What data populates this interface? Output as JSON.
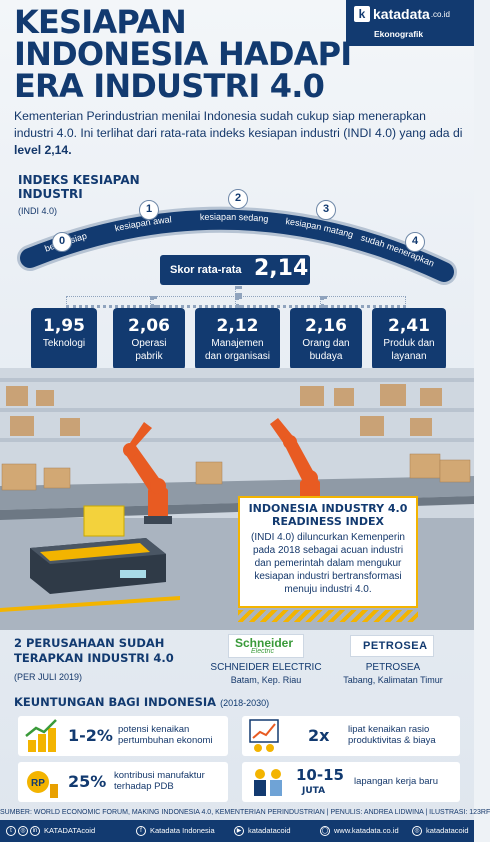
{
  "header": {
    "title_lines": [
      "KESIAPAN",
      "INDONESIA HADAPI",
      "ERA INDUSTRI 4.0"
    ],
    "brand": "katadata",
    "brand_tld": ".co.id",
    "brand_sub": "Ekonografik"
  },
  "intro": {
    "text": "Kementerian Perindustrian menilai Indonesia sudah cukup siap menerapkan industri 4.0. Ini terlihat dari rata-rata indeks kesiapan industri (INDI 4.0) yang ada di ",
    "bold": "level 2,14."
  },
  "index": {
    "title": "INDEKS KESIAPAN INDUSTRI",
    "subtitle": "(INDI 4.0)",
    "levels": [
      {
        "number": "0",
        "label": "belum siap"
      },
      {
        "number": "1",
        "label": "kesiapan awal"
      },
      {
        "number": "2",
        "label": "kesiapan sedang"
      },
      {
        "number": "3",
        "label": "kesiapan matang"
      },
      {
        "number": "4",
        "label": "sudah menerapkan"
      }
    ],
    "score_label": "Skor rata-rata",
    "score_value": "2,14",
    "categories": [
      {
        "value": "1,95",
        "label_lines": [
          "Teknologi"
        ]
      },
      {
        "value": "2,06",
        "label_lines": [
          "Operasi",
          "pabrik"
        ]
      },
      {
        "value": "2,12",
        "label_lines": [
          "Manajemen",
          "dan organisasi"
        ]
      },
      {
        "value": "2,16",
        "label_lines": [
          "Orang dan",
          "budaya"
        ]
      },
      {
        "value": "2,41",
        "label_lines": [
          "Produk dan",
          "layanan"
        ]
      }
    ]
  },
  "readiness": {
    "title_lines": [
      "INDONESIA INDUSTRY 4.0",
      "READINESS INDEX"
    ],
    "body": "(INDI 4.0) diluncurkan Kemenperin pada 2018 sebagai acuan industri dan pemerintah dalam mengukur kesiapan industri bertransformasi menuju industri 4.0."
  },
  "companies": {
    "title_lines": [
      "2 PERUSAHAAN SUDAH",
      "TERAPKAN INDUSTRI 4.0"
    ],
    "subtitle": "(PER JULI 2019)",
    "items": [
      {
        "logo": "Schneider",
        "logo_sub": "Electric",
        "name": "SCHNEIDER ELECTRIC",
        "location": "Batam, Kep. Riau"
      },
      {
        "logo": "PETROSEA",
        "name": "PETROSEA",
        "location": "Tabang, Kalimatan Timur"
      }
    ]
  },
  "benefits": {
    "title": "KEUNTUNGAN BAGI INDONESIA",
    "period": "(2018-2030)",
    "items": [
      {
        "value": "1-2%",
        "desc_lines": [
          "potensi kenaikan",
          "pertumbuhan ekonomi"
        ],
        "icon": "growth-coins-icon"
      },
      {
        "value": "2x",
        "desc_lines": [
          "lipat kenaikan rasio",
          "produktivitas & biaya"
        ],
        "icon": "productivity-chart-icon"
      },
      {
        "value": "25%",
        "desc_lines": [
          "kontribusi manufaktur",
          "terhadap PDB"
        ],
        "icon": "rupiah-money-icon"
      },
      {
        "value": "10-15",
        "value_sub": "JUTA",
        "desc_lines": [
          "lapangan kerja baru"
        ],
        "icon": "workers-icon"
      }
    ]
  },
  "footer": {
    "source": "SUMBER: WORLD ECONOMIC FORUM, MAKING INDONESIA 4.0, KEMENTERIAN PERINDUSTRIAN | PENULIS: ANDREA LIDWINA | ILUSTRASI: 123RF",
    "handle": "KATADATAcoid",
    "facebook": "Katadata Indonesia",
    "youtube": "katadatacoid",
    "website": "www.katadata.co.id",
    "instagram": "katadatacoid"
  },
  "colors": {
    "navy": "#123a70",
    "yellow": "#f3b400",
    "orange": "#e85b22"
  }
}
